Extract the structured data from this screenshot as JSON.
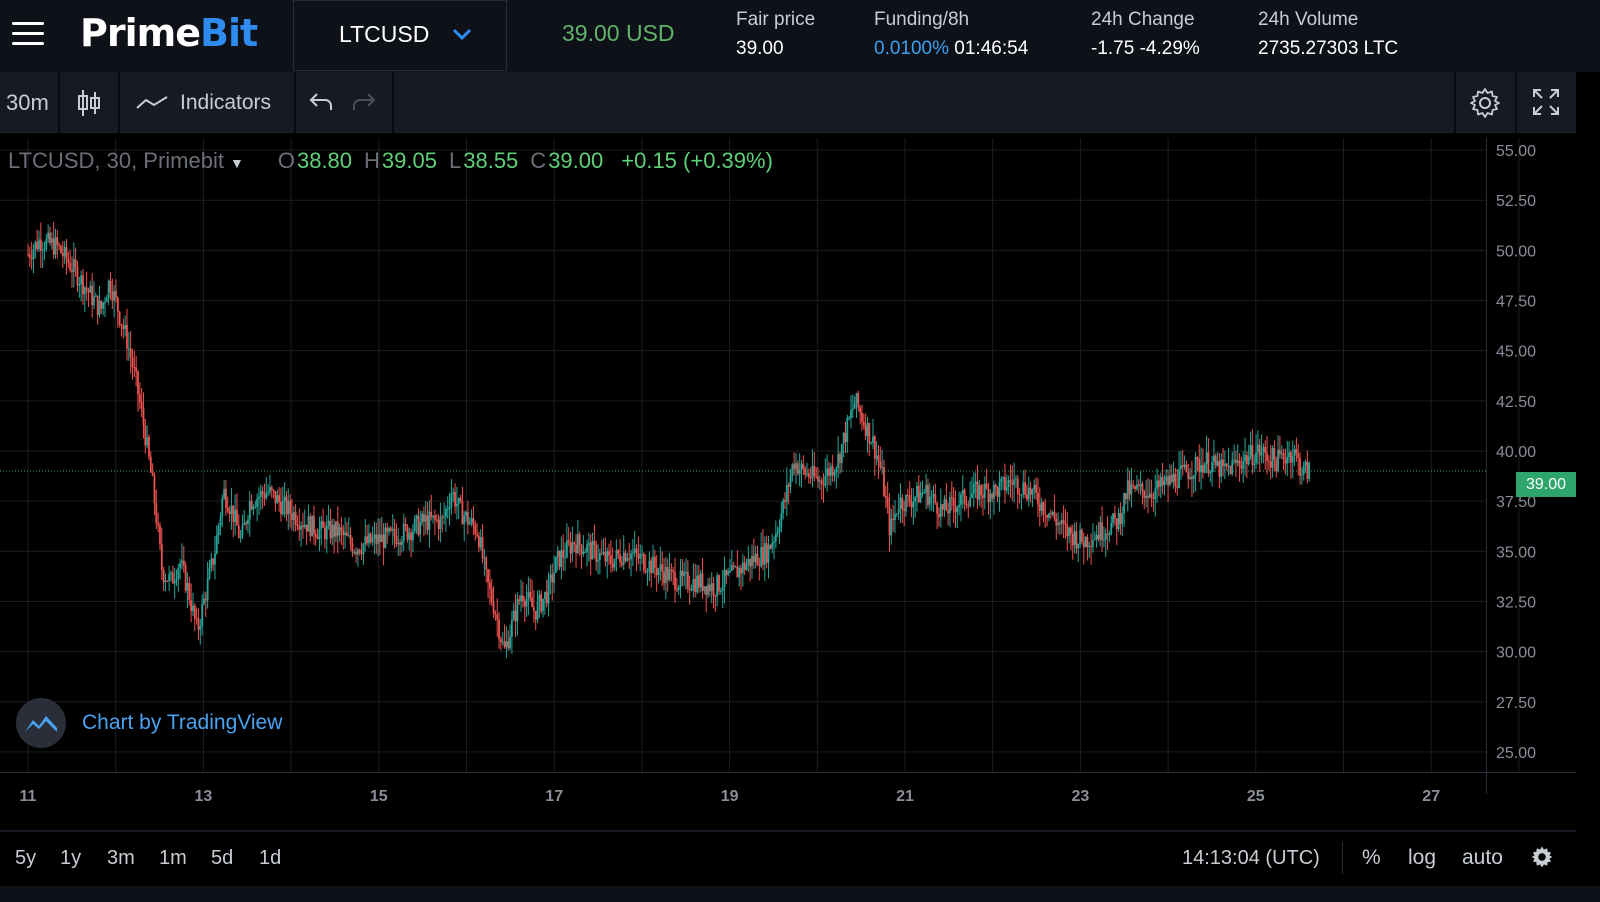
{
  "header": {
    "logo_prime": "Prime",
    "logo_bit": "Bit",
    "symbol": "LTCUSD",
    "last_price": "39.00 USD",
    "fair_price_label": "Fair price",
    "fair_price_value": "39.00",
    "funding_label": "Funding/8h",
    "funding_rate": "0.0100%",
    "funding_countdown": "01:46:54",
    "change_label": "24h Change",
    "change_value": "-1.75 -4.29%",
    "volume_label": "24h Volume",
    "volume_value": "2735.27303 LTC"
  },
  "toolbar": {
    "interval": "30m",
    "indicators_label": "Indicators"
  },
  "legend": {
    "title": "LTCUSD, 30, Primebit",
    "o_key": "O",
    "o_val": "38.80",
    "h_key": "H",
    "h_val": "39.05",
    "l_key": "L",
    "l_val": "38.55",
    "c_key": "C",
    "c_val": "39.00",
    "change": "+0.15 (+0.39%)"
  },
  "attribution": "Chart by TradingView",
  "current_price_tag": "39.00",
  "bottom": {
    "ranges": [
      "5y",
      "1y",
      "3m",
      "1m",
      "5d",
      "1d"
    ],
    "clock": "14:13:04 (UTC)",
    "percent": "%",
    "log": "log",
    "auto": "auto"
  },
  "colors": {
    "up": "#26a69a",
    "down": "#ef5350",
    "accent_blue": "#2e8cf0",
    "price_green": "#5fb36a",
    "change_red": "#f0304a"
  },
  "chart_data": {
    "type": "candlestick",
    "symbol": "LTCUSD",
    "interval": "30",
    "ylim": [
      24.0,
      55.6
    ],
    "y_ticks": [
      "55.00",
      "52.50",
      "50.00",
      "47.50",
      "45.00",
      "42.50",
      "40.00",
      "37.50",
      "35.00",
      "32.50",
      "30.00",
      "27.50",
      "25.00"
    ],
    "x_ticks": [
      "11",
      "13",
      "15",
      "17",
      "19",
      "21",
      "23",
      "25",
      "27"
    ],
    "x_range": [
      10.97,
      28.0
    ],
    "last_price": 39.0,
    "grid": true,
    "price_path": [
      [
        10.97,
        49.8
      ],
      [
        11.1,
        50.5
      ],
      [
        11.3,
        50.2
      ],
      [
        11.5,
        49.0
      ],
      [
        11.65,
        48.0
      ],
      [
        11.8,
        47.0
      ],
      [
        11.9,
        48.5
      ],
      [
        12.0,
        47.0
      ],
      [
        12.1,
        45.5
      ],
      [
        12.2,
        43.5
      ],
      [
        12.3,
        41.0
      ],
      [
        12.4,
        38.0
      ],
      [
        12.5,
        34.0
      ],
      [
        12.6,
        33.5
      ],
      [
        12.7,
        34.5
      ],
      [
        12.8,
        33.0
      ],
      [
        12.9,
        31.0
      ],
      [
        13.0,
        33.0
      ],
      [
        13.1,
        35.0
      ],
      [
        13.2,
        38.0
      ],
      [
        13.3,
        37.0
      ],
      [
        13.4,
        35.5
      ],
      [
        13.5,
        37.5
      ],
      [
        13.7,
        38.0
      ],
      [
        13.9,
        37.2
      ],
      [
        14.1,
        36.5
      ],
      [
        14.3,
        36.0
      ],
      [
        14.5,
        36.0
      ],
      [
        14.7,
        35.2
      ],
      [
        14.9,
        35.5
      ],
      [
        15.1,
        35.7
      ],
      [
        15.3,
        36.0
      ],
      [
        15.5,
        36.5
      ],
      [
        15.7,
        36.5
      ],
      [
        15.8,
        38.0
      ],
      [
        15.9,
        37.0
      ],
      [
        16.0,
        36.5
      ],
      [
        16.1,
        36.0
      ],
      [
        16.2,
        33.5
      ],
      [
        16.3,
        32.0
      ],
      [
        16.4,
        30.0
      ],
      [
        16.5,
        31.5
      ],
      [
        16.6,
        33.0
      ],
      [
        16.75,
        32.0
      ],
      [
        16.9,
        33.0
      ],
      [
        17.0,
        34.5
      ],
      [
        17.2,
        35.5
      ],
      [
        17.4,
        35.0
      ],
      [
        17.6,
        34.5
      ],
      [
        17.8,
        35.0
      ],
      [
        18.0,
        34.5
      ],
      [
        18.2,
        34.0
      ],
      [
        18.4,
        33.5
      ],
      [
        18.6,
        33.5
      ],
      [
        18.8,
        33.2
      ],
      [
        19.0,
        33.8
      ],
      [
        19.2,
        34.5
      ],
      [
        19.4,
        35.0
      ],
      [
        19.5,
        36.0
      ],
      [
        19.6,
        37.5
      ],
      [
        19.7,
        39.5
      ],
      [
        19.8,
        39.0
      ],
      [
        20.0,
        38.5
      ],
      [
        20.2,
        39.5
      ],
      [
        20.3,
        41.0
      ],
      [
        20.4,
        42.5
      ],
      [
        20.5,
        41.5
      ],
      [
        20.6,
        40.5
      ],
      [
        20.7,
        39.0
      ],
      [
        20.8,
        36.0
      ],
      [
        20.9,
        37.5
      ],
      [
        21.0,
        37.5
      ],
      [
        21.2,
        38.0
      ],
      [
        21.4,
        37.0
      ],
      [
        21.6,
        37.5
      ],
      [
        21.8,
        38.0
      ],
      [
        22.0,
        38.0
      ],
      [
        22.2,
        38.5
      ],
      [
        22.4,
        38.0
      ],
      [
        22.6,
        37.0
      ],
      [
        22.8,
        36.0
      ],
      [
        23.0,
        35.5
      ],
      [
        23.2,
        36.0
      ],
      [
        23.4,
        36.5
      ],
      [
        23.5,
        38.0
      ],
      [
        23.6,
        38.0
      ],
      [
        23.8,
        38.0
      ],
      [
        24.0,
        38.5
      ],
      [
        24.2,
        39.0
      ],
      [
        24.4,
        39.5
      ],
      [
        24.6,
        39.0
      ],
      [
        24.8,
        39.5
      ],
      [
        25.0,
        40.0
      ],
      [
        25.2,
        39.5
      ],
      [
        25.4,
        40.0
      ],
      [
        25.5,
        39.0
      ],
      [
        25.6,
        39.0
      ]
    ]
  }
}
